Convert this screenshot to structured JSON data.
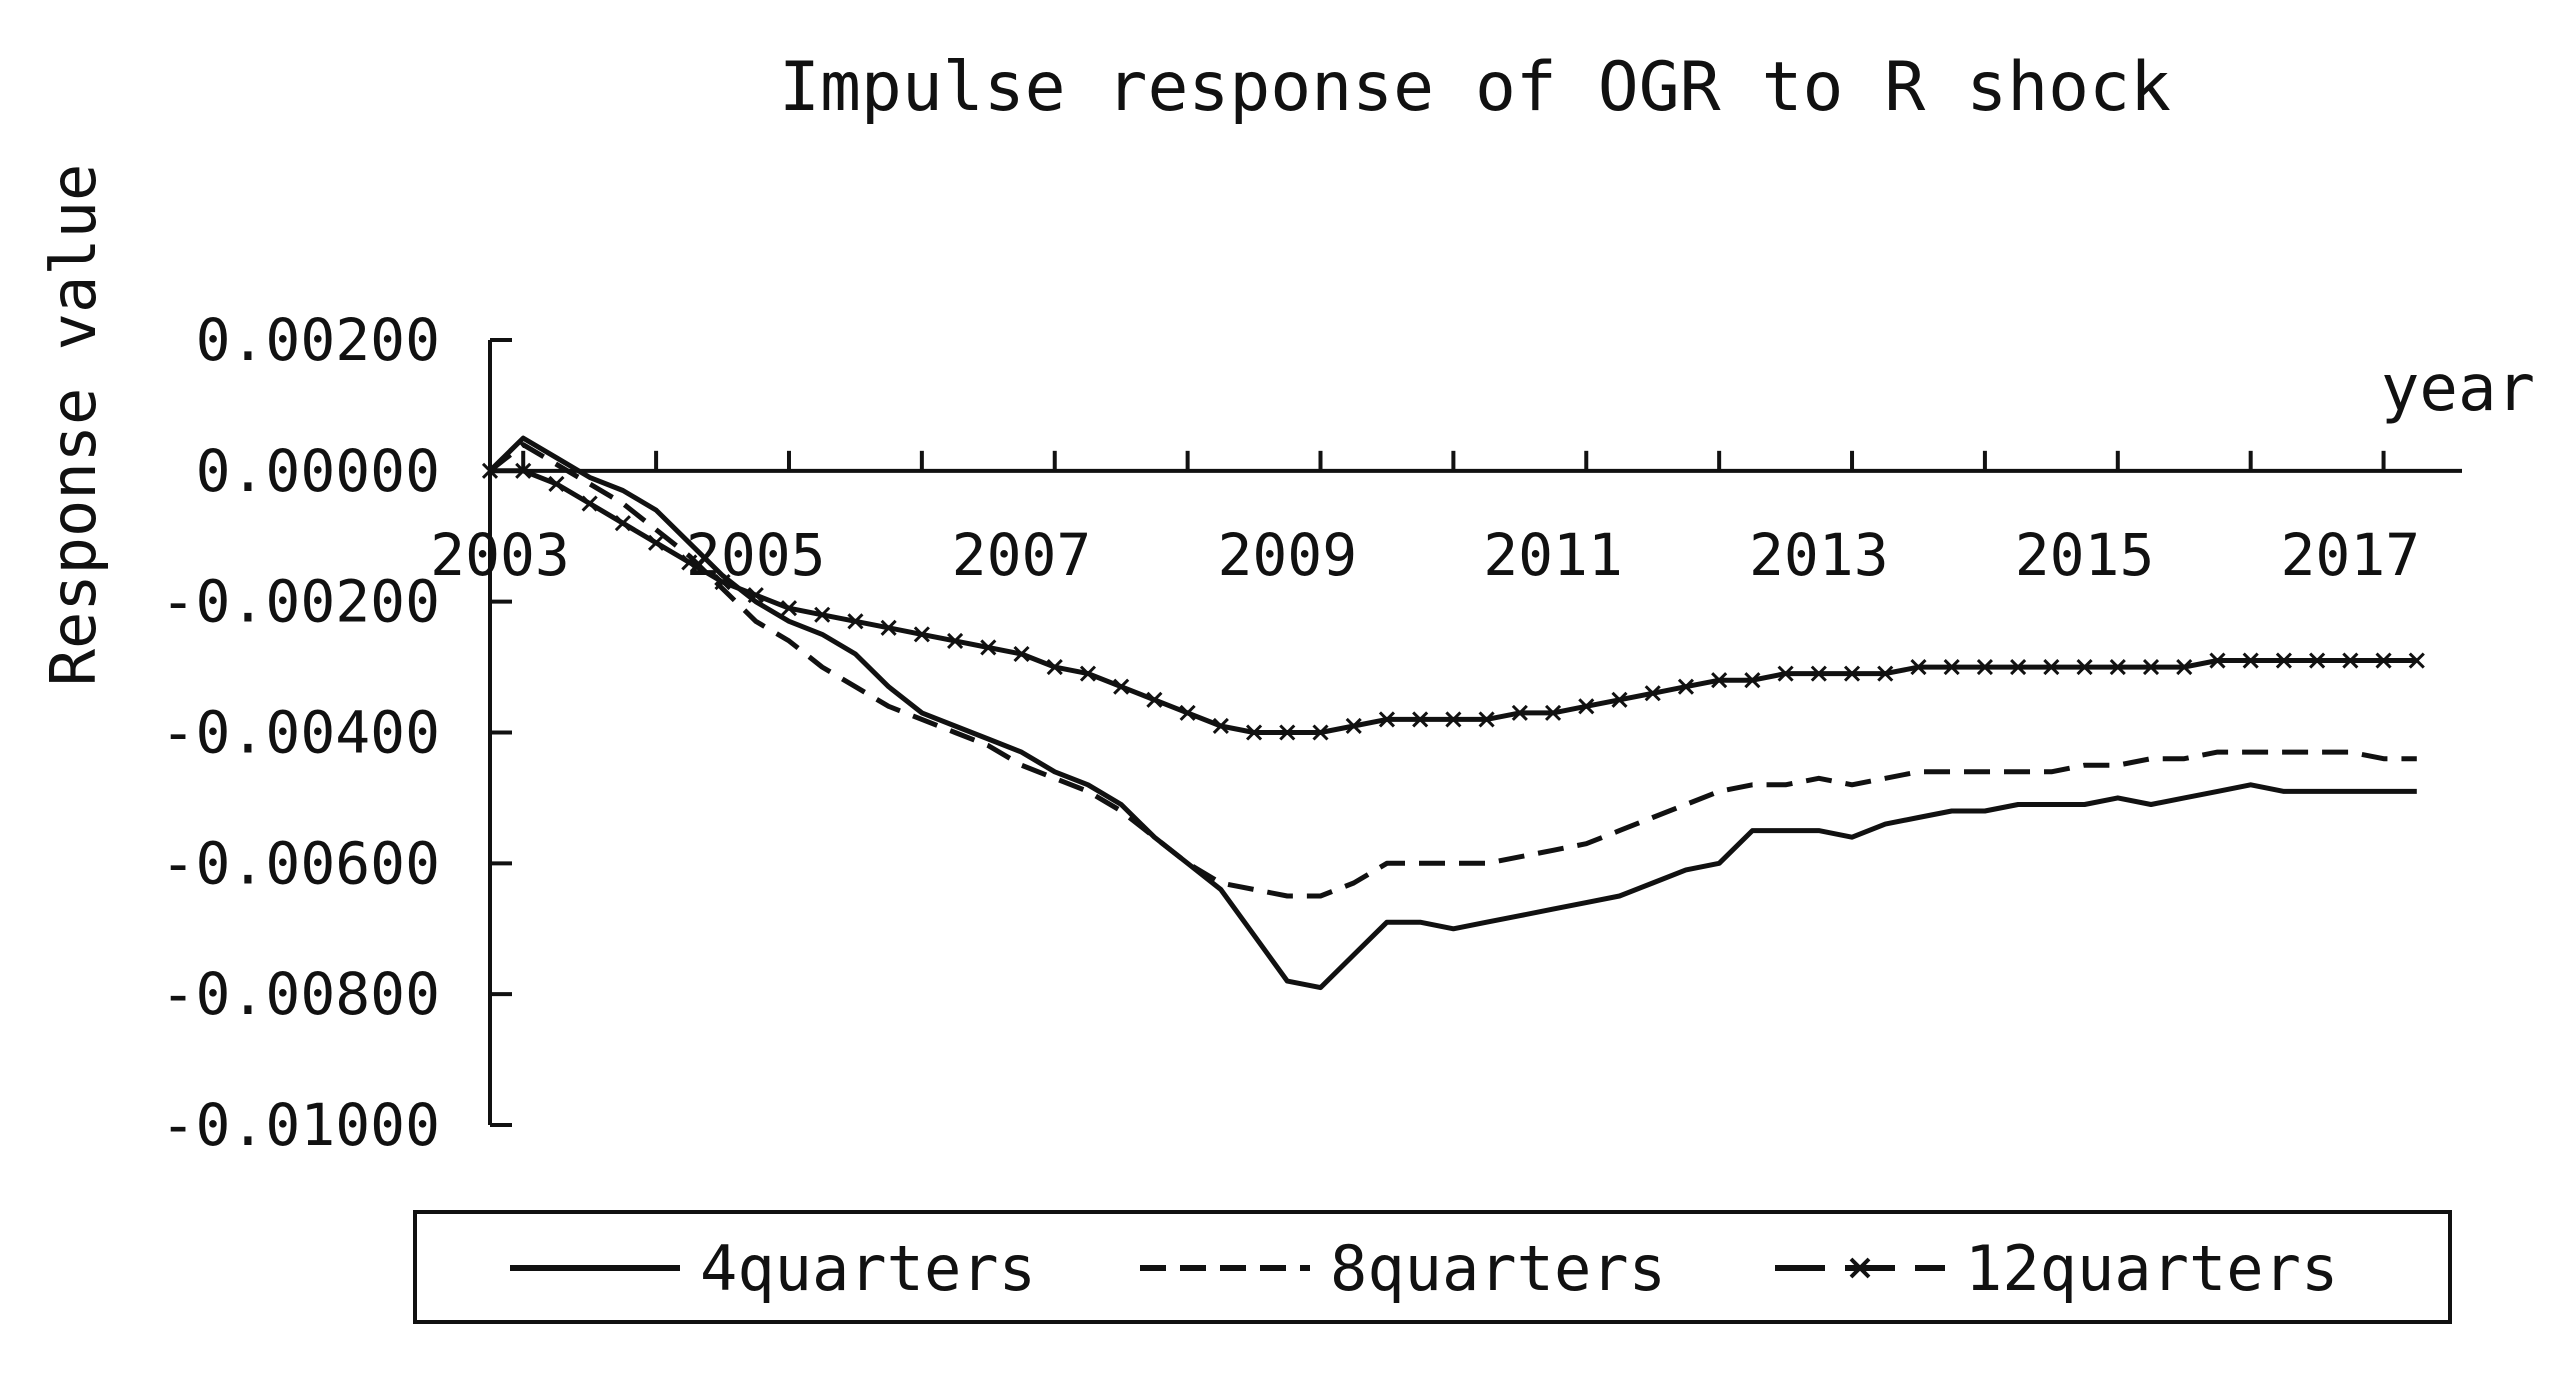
{
  "chart_data": {
    "type": "line",
    "title": "Impulse response of OGR to R shock",
    "ylabel": "Response value",
    "xlabel": "year",
    "x_tick_labels": [
      "2003",
      "2005",
      "2007",
      "2009",
      "2011",
      "2013",
      "2015",
      "2017"
    ],
    "y_tick_labels": [
      "0.00200",
      "0.00000",
      "-0.00200",
      "-0.00400",
      "-0.00600",
      "-0.00800",
      "-0.01000"
    ],
    "ylim": [
      -0.01,
      0.002
    ],
    "xlim": [
      2003,
      2017.75
    ],
    "grid": false,
    "legend_position": "bottom",
    "x": [
      2003,
      2003.25,
      2003.5,
      2003.75,
      2004,
      2004.25,
      2004.5,
      2004.75,
      2005,
      2005.25,
      2005.5,
      2005.75,
      2006,
      2006.25,
      2006.5,
      2006.75,
      2007,
      2007.25,
      2007.5,
      2007.75,
      2008,
      2008.25,
      2008.5,
      2008.75,
      2009,
      2009.25,
      2009.5,
      2009.75,
      2010,
      2010.25,
      2010.5,
      2010.75,
      2011,
      2011.25,
      2011.5,
      2011.75,
      2012,
      2012.25,
      2012.5,
      2012.75,
      2013,
      2013.25,
      2013.5,
      2013.75,
      2014,
      2014.25,
      2014.5,
      2014.75,
      2015,
      2015.25,
      2015.5,
      2015.75,
      2016,
      2016.25,
      2016.5,
      2016.75,
      2017,
      2017.25,
      2017.5
    ],
    "series": [
      {
        "name": "4quarters",
        "style": "solid",
        "color": "#111111",
        "values": [
          0.0,
          0.0005,
          0.0002,
          -0.0001,
          -0.0003,
          -0.0006,
          -0.0011,
          -0.0016,
          -0.002,
          -0.0023,
          -0.0025,
          -0.0028,
          -0.0033,
          -0.0037,
          -0.0039,
          -0.0041,
          -0.0043,
          -0.0046,
          -0.0048,
          -0.0051,
          -0.0056,
          -0.006,
          -0.0064,
          -0.0071,
          -0.0078,
          -0.0079,
          -0.0074,
          -0.0069,
          -0.0069,
          -0.007,
          -0.0069,
          -0.0068,
          -0.0067,
          -0.0066,
          -0.0065,
          -0.0063,
          -0.0061,
          -0.006,
          -0.0055,
          -0.0055,
          -0.0055,
          -0.0056,
          -0.0054,
          -0.0053,
          -0.0052,
          -0.0052,
          -0.0051,
          -0.0051,
          -0.0051,
          -0.005,
          -0.0051,
          -0.005,
          -0.0049,
          -0.0048,
          -0.0049,
          -0.0049,
          -0.0049,
          -0.0049,
          -0.0049
        ]
      },
      {
        "name": "8quarters",
        "style": "dashed",
        "color": "#111111",
        "values": [
          0.0,
          0.0004,
          0.0001,
          -0.0002,
          -0.0005,
          -0.0009,
          -0.0013,
          -0.0018,
          -0.0023,
          -0.0026,
          -0.003,
          -0.0033,
          -0.0036,
          -0.0038,
          -0.004,
          -0.0042,
          -0.0045,
          -0.0047,
          -0.0049,
          -0.0052,
          -0.0056,
          -0.006,
          -0.0063,
          -0.0064,
          -0.0065,
          -0.0065,
          -0.0063,
          -0.006,
          -0.006,
          -0.006,
          -0.006,
          -0.0059,
          -0.0058,
          -0.0057,
          -0.0055,
          -0.0053,
          -0.0051,
          -0.0049,
          -0.0048,
          -0.0048,
          -0.0047,
          -0.0048,
          -0.0047,
          -0.0046,
          -0.0046,
          -0.0046,
          -0.0046,
          -0.0046,
          -0.0045,
          -0.0045,
          -0.0044,
          -0.0044,
          -0.0043,
          -0.0043,
          -0.0043,
          -0.0043,
          -0.0043,
          -0.0044,
          -0.0044
        ]
      },
      {
        "name": "12quarters",
        "style": "dash-x",
        "color": "#111111",
        "values": [
          0.0,
          0.0,
          -0.0002,
          -0.0005,
          -0.0008,
          -0.0011,
          -0.0014,
          -0.0017,
          -0.0019,
          -0.0021,
          -0.0022,
          -0.0023,
          -0.0024,
          -0.0025,
          -0.0026,
          -0.0027,
          -0.0028,
          -0.003,
          -0.0031,
          -0.0033,
          -0.0035,
          -0.0037,
          -0.0039,
          -0.004,
          -0.004,
          -0.004,
          -0.0039,
          -0.0038,
          -0.0038,
          -0.0038,
          -0.0038,
          -0.0037,
          -0.0037,
          -0.0036,
          -0.0035,
          -0.0034,
          -0.0033,
          -0.0032,
          -0.0032,
          -0.0031,
          -0.0031,
          -0.0031,
          -0.0031,
          -0.003,
          -0.003,
          -0.003,
          -0.003,
          -0.003,
          -0.003,
          -0.003,
          -0.003,
          -0.003,
          -0.0029,
          -0.0029,
          -0.0029,
          -0.0029,
          -0.0029,
          -0.0029,
          -0.0029
        ]
      }
    ]
  }
}
